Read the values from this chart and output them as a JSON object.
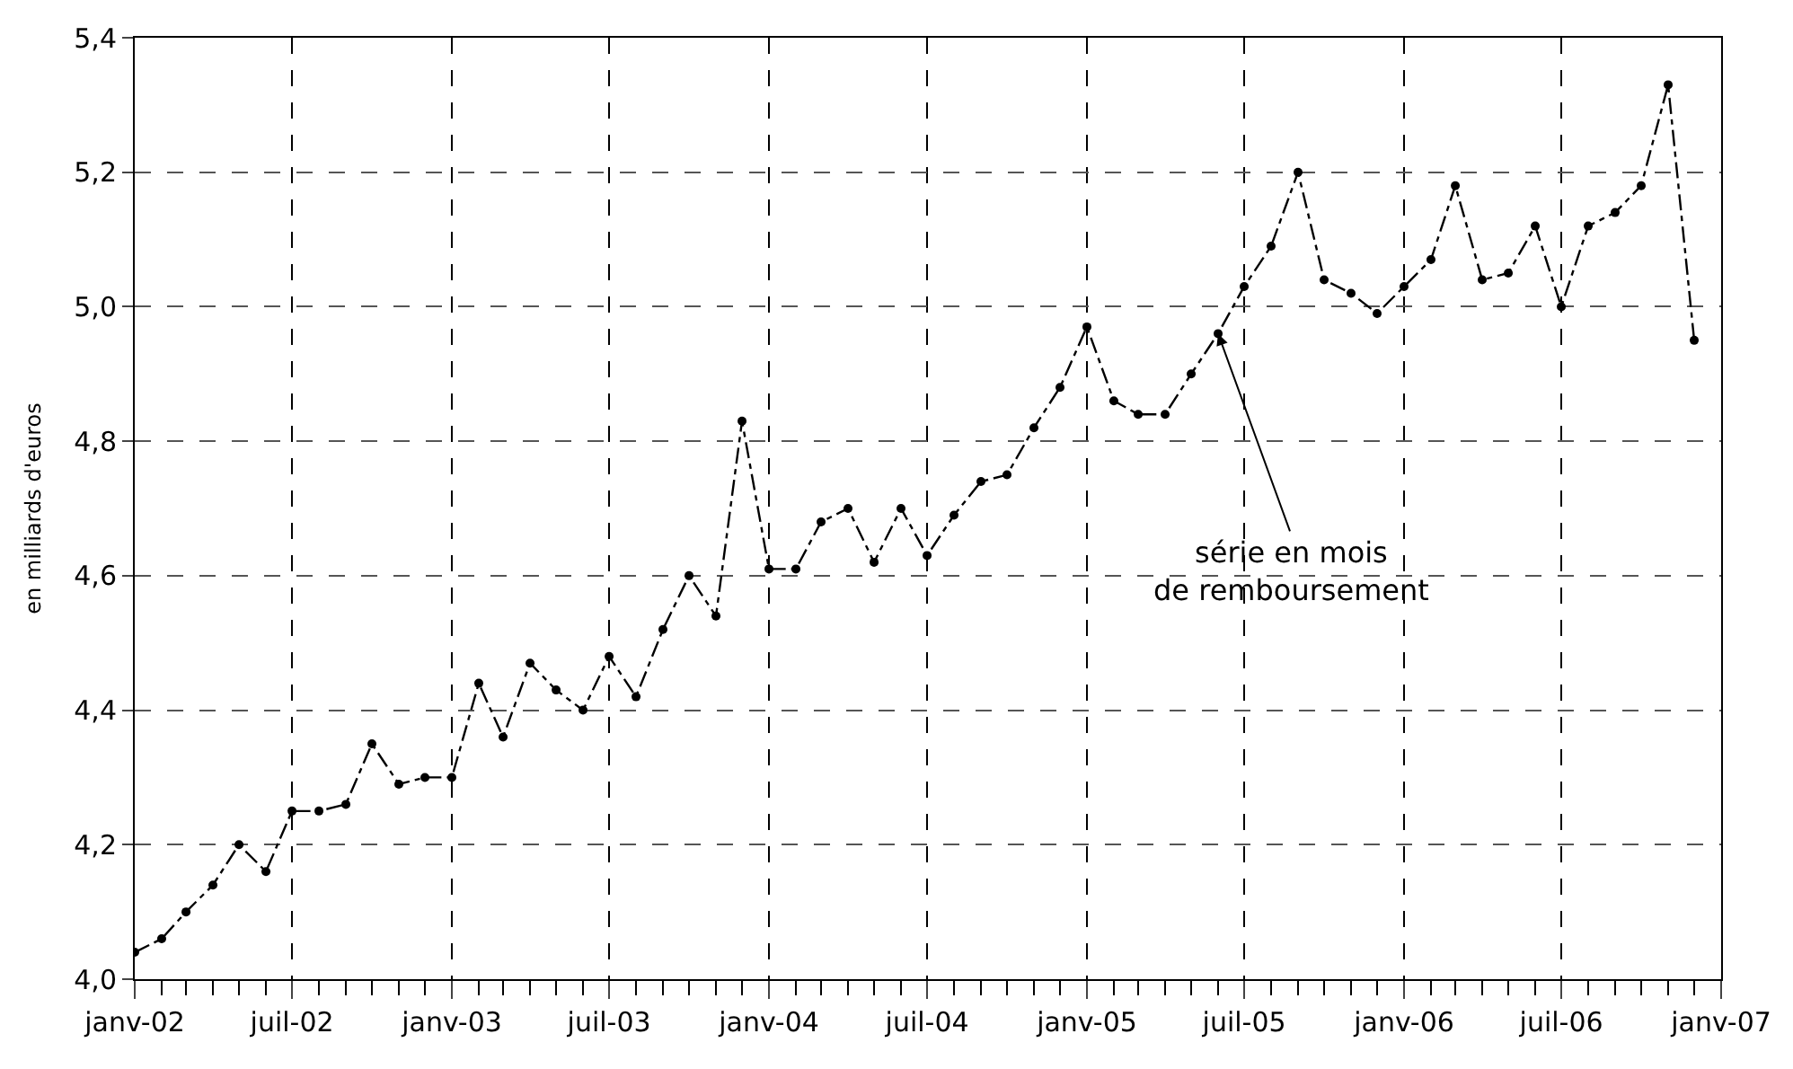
{
  "chart_data": {
    "type": "line",
    "ylabel": "en milliards d'euros",
    "x": [
      "2002-01",
      "2002-02",
      "2002-03",
      "2002-04",
      "2002-05",
      "2002-06",
      "2002-07",
      "2002-08",
      "2002-09",
      "2002-10",
      "2002-11",
      "2002-12",
      "2003-01",
      "2003-02",
      "2003-03",
      "2003-04",
      "2003-05",
      "2003-06",
      "2003-07",
      "2003-08",
      "2003-09",
      "2003-10",
      "2003-11",
      "2003-12",
      "2004-01",
      "2004-02",
      "2004-03",
      "2004-04",
      "2004-05",
      "2004-06",
      "2004-07",
      "2004-08",
      "2004-09",
      "2004-10",
      "2004-11",
      "2004-12",
      "2005-01",
      "2005-02",
      "2005-03",
      "2005-04",
      "2005-05",
      "2005-06",
      "2005-07",
      "2005-08",
      "2005-09",
      "2005-10",
      "2005-11",
      "2005-12",
      "2006-01",
      "2006-02",
      "2006-03",
      "2006-04",
      "2006-05",
      "2006-06",
      "2006-07",
      "2006-08",
      "2006-09",
      "2006-10",
      "2006-11",
      "2006-12"
    ],
    "series": [
      {
        "color": "#000000",
        "values": [
          4.04,
          4.06,
          4.1,
          4.14,
          4.2,
          4.16,
          4.25,
          4.25,
          4.26,
          4.35,
          4.29,
          4.3,
          4.3,
          4.44,
          4.36,
          4.47,
          4.43,
          4.4,
          4.48,
          4.42,
          4.52,
          4.6,
          4.54,
          4.83,
          4.61,
          4.61,
          4.68,
          4.7,
          4.62,
          4.7,
          4.63,
          4.69,
          4.74,
          4.75,
          4.82,
          4.88,
          4.97,
          4.86,
          4.84,
          4.84,
          4.9,
          4.96,
          5.03,
          5.09,
          5.2,
          5.04,
          5.02,
          4.99,
          5.03,
          5.07,
          5.18,
          5.04,
          5.05,
          5.12,
          5.0,
          5.12,
          5.14,
          5.18,
          5.33,
          4.95
        ]
      }
    ],
    "xlim": [
      "2002-01",
      "2007-01"
    ],
    "xticks": [
      {
        "value": "2002-01",
        "label": "janv-02"
      },
      {
        "value": "2002-07",
        "label": "juil-02"
      },
      {
        "value": "2003-01",
        "label": "janv-03"
      },
      {
        "value": "2003-07",
        "label": "juil-03"
      },
      {
        "value": "2004-01",
        "label": "janv-04"
      },
      {
        "value": "2004-07",
        "label": "juil-04"
      },
      {
        "value": "2005-01",
        "label": "janv-05"
      },
      {
        "value": "2005-07",
        "label": "juil-05"
      },
      {
        "value": "2006-01",
        "label": "janv-06"
      },
      {
        "value": "2006-07",
        "label": "juil-06"
      },
      {
        "value": "2007-01",
        "label": "janv-07"
      }
    ],
    "ylim": [
      4.0,
      5.4
    ],
    "yticks": [
      {
        "value": 4.0,
        "label": "4,0"
      },
      {
        "value": 4.2,
        "label": "4,2"
      },
      {
        "value": 4.4,
        "label": "4,4"
      },
      {
        "value": 4.6,
        "label": "4,6"
      },
      {
        "value": 4.8,
        "label": "4,8"
      },
      {
        "value": 5.0,
        "label": "5,0"
      },
      {
        "value": 5.2,
        "label": "5,2"
      },
      {
        "value": 5.4,
        "label": "5,4"
      }
    ],
    "grid": true,
    "marker": "circle",
    "line_style": "dashed",
    "annotations": [
      {
        "text": "série en mois\nde remboursement",
        "x": "2005-06",
        "y": 4.96
      }
    ]
  }
}
